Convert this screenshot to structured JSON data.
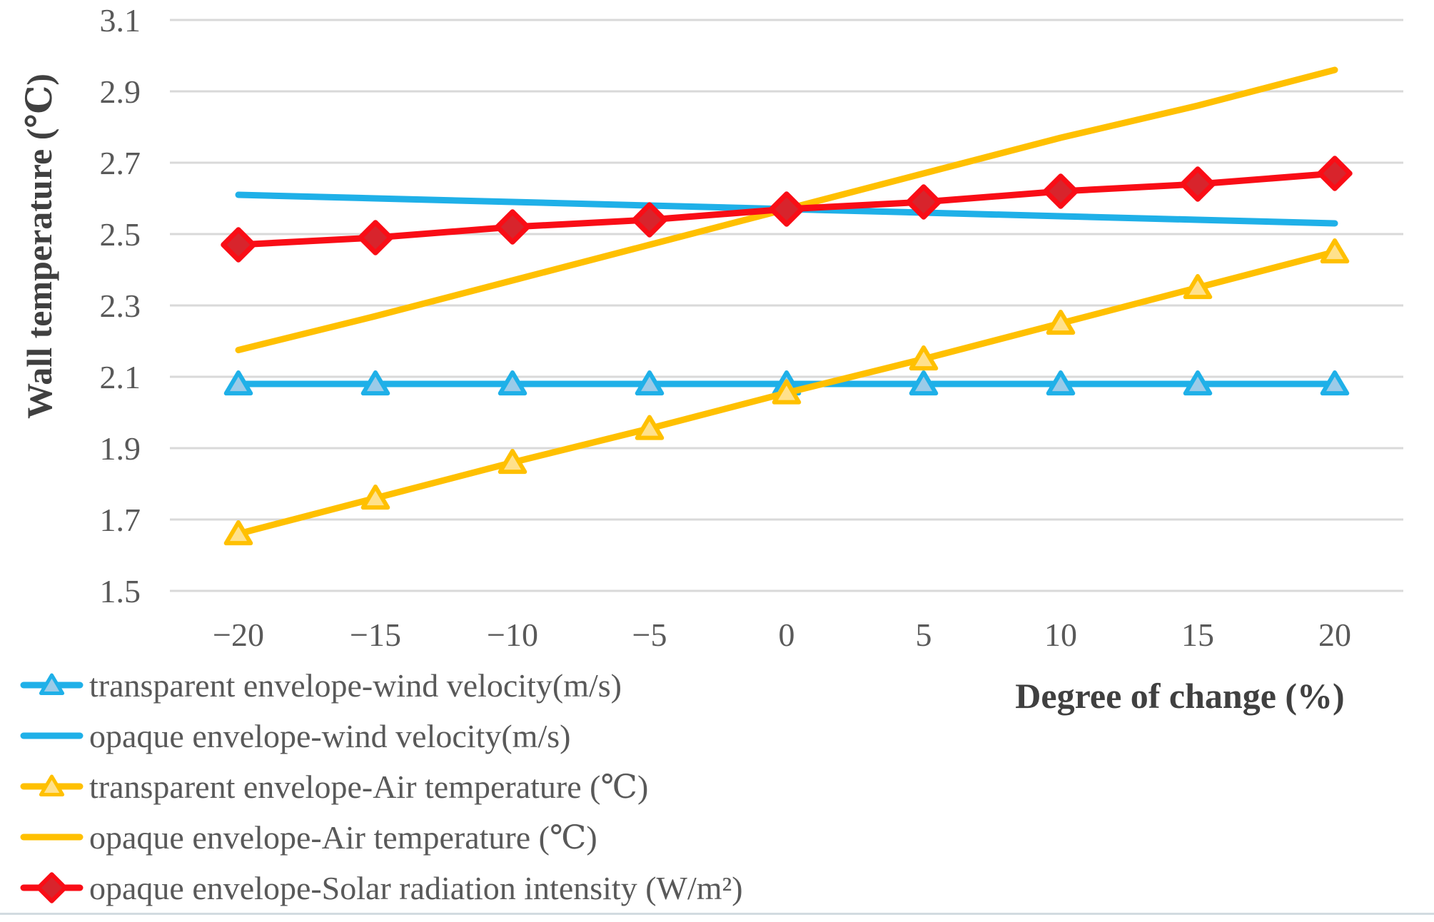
{
  "page": {
    "background": "#ffffff",
    "bottom_rule_color": "#d2dbe0"
  },
  "chart_data": {
    "type": "line",
    "x": [
      -20,
      -15,
      -10,
      -5,
      0,
      5,
      10,
      15,
      20
    ],
    "xtick_labels": [
      "−20",
      "−15",
      "−10",
      "−5",
      "0",
      "5",
      "10",
      "15",
      "20"
    ],
    "yticks": [
      3.1,
      2.9,
      2.7,
      2.5,
      2.3,
      2.1,
      1.9,
      1.7,
      1.5
    ],
    "ytick_labels": [
      "3.1",
      "2.9",
      "2.7",
      "2.5",
      "2.3",
      "2.1",
      "1.9",
      "1.7",
      "1.5"
    ],
    "ylim": [
      1.5,
      3.1
    ],
    "xlabel": "Degree of change (%)",
    "ylabel": "Wall temperature (℃)",
    "grid": "horizontal",
    "gridline_color": "#d9d9d9",
    "legend_position": "bottom-left",
    "text_color": "#595959",
    "series": [
      {
        "name": "transparent envelope-wind velocity(m/s)",
        "color": "#1fb0e8",
        "marker": "triangle",
        "marker_fill": "#9bcbe8",
        "values": [
          2.08,
          2.08,
          2.08,
          2.08,
          2.08,
          2.08,
          2.08,
          2.08,
          2.08
        ]
      },
      {
        "name": "opaque envelope-wind velocity(m/s)",
        "color": "#1fb0e8",
        "marker": "none",
        "marker_fill": "",
        "values": [
          2.61,
          2.6,
          2.59,
          2.58,
          2.57,
          2.56,
          2.55,
          2.54,
          2.53
        ]
      },
      {
        "name": "transparent envelope-Air temperature (℃)",
        "color": "#ffc000",
        "marker": "triangle",
        "marker_fill": "#ffe18c",
        "values": [
          1.66,
          1.76,
          1.86,
          1.955,
          2.055,
          2.15,
          2.25,
          2.35,
          2.45
        ]
      },
      {
        "name": "opaque envelope-Air temperature (℃)",
        "color": "#ffc000",
        "marker": "none",
        "marker_fill": "",
        "values": [
          2.175,
          2.27,
          2.37,
          2.47,
          2.57,
          2.67,
          2.77,
          2.86,
          2.96
        ]
      },
      {
        "name": "opaque envelope-Solar radiation intensity (W/m²)",
        "color": "#f90d16",
        "marker": "diamond",
        "marker_fill": "#d8242c",
        "values": [
          2.47,
          2.49,
          2.52,
          2.54,
          2.57,
          2.59,
          2.62,
          2.64,
          2.67
        ]
      }
    ]
  }
}
